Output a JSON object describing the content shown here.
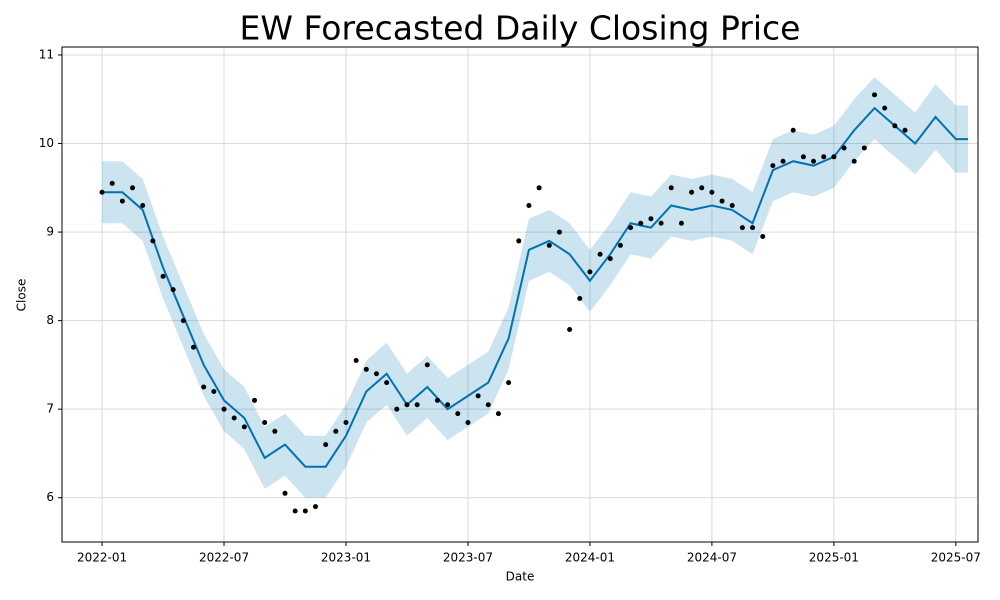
{
  "chart_data": {
    "type": "forecast",
    "title": "EW Forecasted Daily Closing Price",
    "xlabel": "Date",
    "ylabel": "Close",
    "xlim": [
      -1.97,
      43.09
    ],
    "xticks": [
      {
        "value": 0,
        "label": "2022-01"
      },
      {
        "value": 6,
        "label": "2022-07"
      },
      {
        "value": 12,
        "label": "2023-01"
      },
      {
        "value": 18,
        "label": "2023-07"
      },
      {
        "value": 24,
        "label": "2024-01"
      },
      {
        "value": 30,
        "label": "2024-07"
      },
      {
        "value": 36,
        "label": "2025-01"
      },
      {
        "value": 42,
        "label": "2025-07"
      }
    ],
    "ylim": [
      5.5,
      11.09
    ],
    "yticks": [
      6,
      7,
      8,
      9,
      10,
      11
    ],
    "grid": true,
    "observed": {
      "color": "#000000",
      "x": [
        0,
        0.5,
        1,
        1.5,
        2,
        2.5,
        3,
        3.5,
        4,
        4.5,
        5,
        5.5,
        6,
        6.5,
        7,
        7.5,
        8,
        8.5,
        9,
        9.5,
        10,
        10.5,
        11,
        11.5,
        12,
        12.5,
        13,
        13.5,
        14,
        14.5,
        15,
        15.5,
        16,
        16.5,
        17,
        17.5,
        18,
        18.5,
        19,
        19.5,
        20,
        20.5,
        21,
        21.5,
        22,
        22.5,
        23,
        23.5,
        24,
        24.5,
        25,
        25.5,
        26,
        26.5,
        27,
        27.5,
        28,
        28.5,
        29,
        29.5,
        30,
        30.5,
        31,
        31.5,
        32,
        32.5,
        33,
        33.5,
        34,
        34.5,
        35,
        35.5,
        36,
        36.5,
        37,
        37.5,
        38,
        38.5,
        39,
        39.5
      ],
      "values": [
        9.45,
        9.55,
        9.35,
        9.5,
        9.3,
        8.9,
        8.5,
        8.35,
        8.0,
        7.7,
        7.25,
        7.2,
        7.0,
        6.9,
        6.8,
        7.1,
        6.85,
        6.75,
        6.05,
        5.85,
        5.85,
        5.9,
        6.6,
        6.75,
        6.85,
        7.55,
        7.45,
        7.4,
        7.3,
        7.0,
        7.05,
        7.05,
        7.5,
        7.1,
        7.05,
        6.95,
        6.85,
        7.15,
        7.05,
        6.95,
        7.3,
        8.9,
        9.3,
        9.5,
        8.85,
        9.0,
        7.9,
        8.25,
        8.55,
        8.75,
        8.7,
        8.85,
        9.05,
        9.1,
        9.15,
        9.1,
        9.5,
        9.1,
        9.45,
        9.5,
        9.45,
        9.35,
        9.3,
        9.05,
        9.05,
        8.95,
        9.75,
        9.8,
        10.15,
        9.85,
        9.8,
        9.85,
        9.85,
        9.95,
        9.8,
        9.95,
        10.55,
        10.4,
        10.2,
        10.15
      ]
    },
    "forecast": {
      "color": "#0072b2",
      "x": [
        0,
        1,
        2,
        3,
        4,
        5,
        6,
        7,
        8,
        9,
        10,
        11,
        12,
        13,
        14,
        15,
        16,
        17,
        18,
        19,
        20,
        21,
        22,
        23,
        24,
        25,
        26,
        27,
        28,
        29,
        30,
        31,
        32,
        33,
        34,
        35,
        36,
        37,
        38,
        39,
        40,
        41,
        42,
        42.6
      ],
      "values": [
        9.45,
        9.45,
        9.25,
        8.6,
        8.05,
        7.5,
        7.1,
        6.9,
        6.45,
        6.6,
        6.35,
        6.35,
        6.7,
        7.2,
        7.4,
        7.05,
        7.25,
        7.0,
        7.15,
        7.3,
        7.8,
        8.8,
        8.9,
        8.75,
        8.45,
        8.75,
        9.1,
        9.05,
        9.3,
        9.25,
        9.3,
        9.25,
        9.1,
        9.7,
        9.8,
        9.75,
        9.85,
        10.15,
        10.4,
        10.2,
        10.0,
        10.3,
        10.05,
        10.05
      ],
      "lower": [
        9.1,
        9.1,
        8.9,
        8.25,
        7.7,
        7.15,
        6.75,
        6.55,
        6.1,
        6.25,
        6.0,
        6.0,
        6.35,
        6.85,
        7.05,
        6.7,
        6.9,
        6.65,
        6.8,
        6.95,
        7.45,
        8.45,
        8.55,
        8.4,
        8.1,
        8.4,
        8.75,
        8.7,
        8.95,
        8.9,
        8.95,
        8.9,
        8.75,
        9.35,
        9.45,
        9.4,
        9.5,
        9.8,
        10.05,
        9.85,
        9.65,
        9.93,
        9.67,
        9.67
      ],
      "upper": [
        9.8,
        9.8,
        9.6,
        8.95,
        8.4,
        7.85,
        7.45,
        7.25,
        6.8,
        6.95,
        6.7,
        6.7,
        7.05,
        7.55,
        7.75,
        7.4,
        7.6,
        7.35,
        7.5,
        7.65,
        8.15,
        9.15,
        9.25,
        9.1,
        8.8,
        9.1,
        9.45,
        9.4,
        9.65,
        9.6,
        9.65,
        9.6,
        9.45,
        10.05,
        10.15,
        10.1,
        10.2,
        10.5,
        10.75,
        10.55,
        10.35,
        10.67,
        10.43,
        10.43
      ]
    }
  }
}
